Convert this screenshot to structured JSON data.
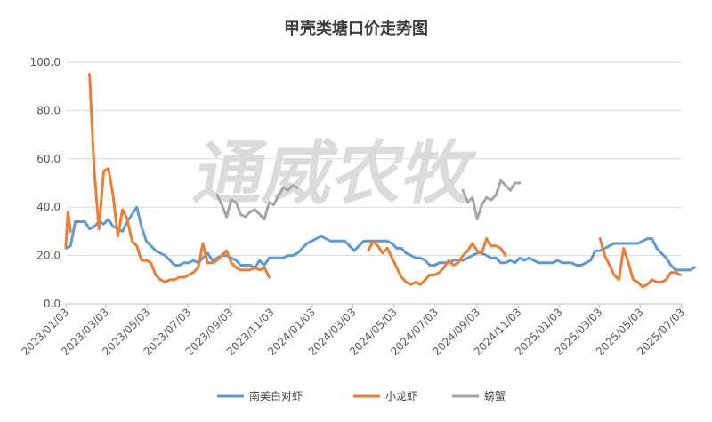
{
  "chart_data": {
    "type": "line",
    "title": "甲壳类塘口价走势图",
    "watermark": "通威农牧",
    "xlabel": "",
    "ylabel": "",
    "ylim": [
      0,
      100
    ],
    "yticks": [
      "0.0",
      "20.0",
      "40.0",
      "60.0",
      "80.0",
      "100.0"
    ],
    "xlim": [
      "2023-01-03",
      "2025-07-03"
    ],
    "xticks": [
      "2023/01/03",
      "2023/03/03",
      "2023/05/03",
      "2023/07/03",
      "2023/09/03",
      "2023/11/03",
      "2024/01/03",
      "2024/03/03",
      "2024/05/03",
      "2024/07/03",
      "2024/09/03",
      "2024/11/03",
      "2025/01/03",
      "2025/03/03",
      "2025/05/03",
      "2025/07/03"
    ],
    "grid": "horizontal",
    "legend": "bottom",
    "series": [
      {
        "name": "南美白对虾",
        "color": "#5b9bd5",
        "points": [
          [
            "2023-01-03",
            23
          ],
          [
            "2023-01-10",
            24
          ],
          [
            "2023-01-17",
            34
          ],
          [
            "2023-01-24",
            34
          ],
          [
            "2023-01-31",
            34
          ],
          [
            "2023-02-07",
            31
          ],
          [
            "2023-02-14",
            32
          ],
          [
            "2023-02-21",
            34
          ],
          [
            "2023-02-28",
            33
          ],
          [
            "2023-03-07",
            35
          ],
          [
            "2023-03-14",
            32
          ],
          [
            "2023-03-21",
            31
          ],
          [
            "2023-03-28",
            30
          ],
          [
            "2023-04-04",
            34
          ],
          [
            "2023-04-11",
            37
          ],
          [
            "2023-04-18",
            40
          ],
          [
            "2023-04-25",
            32
          ],
          [
            "2023-05-02",
            26
          ],
          [
            "2023-05-09",
            24
          ],
          [
            "2023-05-16",
            22
          ],
          [
            "2023-05-23",
            21
          ],
          [
            "2023-05-30",
            20
          ],
          [
            "2023-06-06",
            18
          ],
          [
            "2023-06-13",
            16
          ],
          [
            "2023-06-20",
            16
          ],
          [
            "2023-06-27",
            17
          ],
          [
            "2023-07-04",
            17
          ],
          [
            "2023-07-11",
            18
          ],
          [
            "2023-07-18",
            17
          ],
          [
            "2023-07-25",
            19
          ],
          [
            "2023-08-01",
            21
          ],
          [
            "2023-08-08",
            18
          ],
          [
            "2023-08-15",
            19
          ],
          [
            "2023-08-22",
            20
          ],
          [
            "2023-08-29",
            20
          ],
          [
            "2023-09-05",
            19
          ],
          [
            "2023-09-12",
            18
          ],
          [
            "2023-09-19",
            16
          ],
          [
            "2023-09-26",
            16
          ],
          [
            "2023-10-03",
            16
          ],
          [
            "2023-10-10",
            15
          ],
          [
            "2023-10-17",
            18
          ],
          [
            "2023-10-24",
            16
          ],
          [
            "2023-10-31",
            19
          ],
          [
            "2023-11-07",
            19
          ],
          [
            "2023-11-14",
            19
          ],
          [
            "2023-11-21",
            19
          ],
          [
            "2023-11-28",
            20
          ],
          [
            "2023-12-05",
            20
          ],
          [
            "2023-12-12",
            21
          ],
          [
            "2023-12-19",
            23
          ],
          [
            "2023-12-26",
            25
          ],
          [
            "2024-01-02",
            26
          ],
          [
            "2024-01-09",
            27
          ],
          [
            "2024-01-16",
            28
          ],
          [
            "2024-01-23",
            27
          ],
          [
            "2024-01-30",
            26
          ],
          [
            "2024-02-06",
            26
          ],
          [
            "2024-02-13",
            26
          ],
          [
            "2024-02-20",
            26
          ],
          [
            "2024-02-27",
            24
          ],
          [
            "2024-03-05",
            22
          ],
          [
            "2024-03-12",
            24
          ],
          [
            "2024-03-19",
            26
          ],
          [
            "2024-03-26",
            26
          ],
          [
            "2024-04-02",
            26
          ],
          [
            "2024-04-09",
            26
          ],
          [
            "2024-04-16",
            26
          ],
          [
            "2024-04-23",
            26
          ],
          [
            "2024-04-30",
            25
          ],
          [
            "2024-05-07",
            23
          ],
          [
            "2024-05-14",
            23
          ],
          [
            "2024-05-21",
            21
          ],
          [
            "2024-05-28",
            20
          ],
          [
            "2024-06-04",
            19
          ],
          [
            "2024-06-11",
            19
          ],
          [
            "2024-06-18",
            18
          ],
          [
            "2024-06-25",
            16
          ],
          [
            "2024-07-02",
            16
          ],
          [
            "2024-07-09",
            17
          ],
          [
            "2024-07-16",
            17
          ],
          [
            "2024-07-23",
            17
          ],
          [
            "2024-07-30",
            18
          ],
          [
            "2024-08-06",
            18
          ],
          [
            "2024-08-13",
            18
          ],
          [
            "2024-08-20",
            19
          ],
          [
            "2024-08-27",
            20
          ],
          [
            "2024-09-03",
            21
          ],
          [
            "2024-09-10",
            21
          ],
          [
            "2024-09-17",
            20
          ],
          [
            "2024-09-24",
            19
          ],
          [
            "2024-10-01",
            19
          ],
          [
            "2024-10-08",
            17
          ],
          [
            "2024-10-15",
            17
          ],
          [
            "2024-10-22",
            18
          ],
          [
            "2024-10-29",
            17
          ],
          [
            "2024-11-05",
            19
          ],
          [
            "2024-11-12",
            18
          ],
          [
            "2024-11-19",
            19
          ],
          [
            "2024-11-26",
            18
          ],
          [
            "2024-12-03",
            17
          ],
          [
            "2024-12-10",
            17
          ],
          [
            "2024-12-17",
            17
          ],
          [
            "2024-12-24",
            17
          ],
          [
            "2024-12-31",
            18
          ],
          [
            "2025-01-07",
            17
          ],
          [
            "2025-01-14",
            17
          ],
          [
            "2025-01-21",
            17
          ],
          [
            "2025-01-28",
            16
          ],
          [
            "2025-02-04",
            16
          ],
          [
            "2025-02-11",
            17
          ],
          [
            "2025-02-18",
            18
          ],
          [
            "2025-02-25",
            22
          ],
          [
            "2025-03-04",
            22
          ],
          [
            "2025-03-11",
            23
          ],
          [
            "2025-03-18",
            24
          ],
          [
            "2025-03-25",
            25
          ],
          [
            "2025-04-01",
            25
          ],
          [
            "2025-04-08",
            25
          ],
          [
            "2025-04-15",
            25
          ],
          [
            "2025-04-22",
            25
          ],
          [
            "2025-04-29",
            25
          ],
          [
            "2025-05-06",
            26
          ],
          [
            "2025-05-13",
            27
          ],
          [
            "2025-05-20",
            27
          ],
          [
            "2025-05-27",
            23
          ],
          [
            "2025-06-03",
            21
          ],
          [
            "2025-06-10",
            19
          ],
          [
            "2025-06-17",
            16
          ],
          [
            "2025-06-24",
            14
          ],
          [
            "2025-07-01",
            14
          ],
          [
            "2025-07-08",
            14
          ],
          [
            "2025-07-15",
            14
          ],
          [
            "2025-07-22",
            15
          ]
        ]
      },
      {
        "name": "小龙虾",
        "color": "#ed7d31",
        "segments": [
          [
            [
              "2023-01-03",
              24
            ],
            [
              "2023-01-06",
              38
            ],
            [
              "2023-01-10",
              30
            ]
          ],
          [
            [
              "2023-02-07",
              95
            ],
            [
              "2023-02-14",
              55
            ],
            [
              "2023-02-21",
              31
            ],
            [
              "2023-02-28",
              55
            ],
            [
              "2023-03-07",
              56
            ],
            [
              "2023-03-14",
              45
            ],
            [
              "2023-03-21",
              28
            ],
            [
              "2023-03-28",
              39
            ],
            [
              "2023-04-04",
              35
            ],
            [
              "2023-04-11",
              26
            ],
            [
              "2023-04-18",
              24
            ],
            [
              "2023-04-25",
              18
            ],
            [
              "2023-05-02",
              18
            ],
            [
              "2023-05-09",
              17
            ],
            [
              "2023-05-16",
              12
            ],
            [
              "2023-05-23",
              10
            ],
            [
              "2023-05-30",
              9
            ],
            [
              "2023-06-06",
              10
            ],
            [
              "2023-06-13",
              10
            ],
            [
              "2023-06-20",
              11
            ],
            [
              "2023-06-27",
              11
            ],
            [
              "2023-07-04",
              12
            ],
            [
              "2023-07-11",
              13
            ],
            [
              "2023-07-18",
              15
            ],
            [
              "2023-07-25",
              25
            ],
            [
              "2023-08-01",
              17
            ],
            [
              "2023-08-08",
              17
            ],
            [
              "2023-08-15",
              18
            ],
            [
              "2023-08-22",
              20
            ],
            [
              "2023-08-29",
              22
            ],
            [
              "2023-09-05",
              17
            ],
            [
              "2023-09-12",
              15
            ],
            [
              "2023-09-19",
              14
            ],
            [
              "2023-09-26",
              14
            ],
            [
              "2023-10-03",
              14
            ],
            [
              "2023-10-10",
              15
            ],
            [
              "2023-10-17",
              14
            ],
            [
              "2023-10-24",
              15
            ],
            [
              "2023-10-31",
              11
            ]
          ],
          [
            [
              "2024-03-26",
              22
            ],
            [
              "2024-04-02",
              26
            ],
            [
              "2024-04-09",
              24
            ],
            [
              "2024-04-16",
              21
            ],
            [
              "2024-04-23",
              23
            ],
            [
              "2024-04-30",
              19
            ],
            [
              "2024-05-07",
              15
            ],
            [
              "2024-05-14",
              11
            ],
            [
              "2024-05-21",
              9
            ],
            [
              "2024-05-28",
              8
            ],
            [
              "2024-06-04",
              9
            ],
            [
              "2024-06-11",
              8
            ],
            [
              "2024-06-18",
              10
            ],
            [
              "2024-06-25",
              12
            ],
            [
              "2024-07-02",
              12
            ],
            [
              "2024-07-09",
              13
            ],
            [
              "2024-07-16",
              15
            ],
            [
              "2024-07-23",
              18
            ],
            [
              "2024-07-30",
              16
            ],
            [
              "2024-08-06",
              17
            ],
            [
              "2024-08-13",
              20
            ],
            [
              "2024-08-20",
              22
            ],
            [
              "2024-08-27",
              25
            ],
            [
              "2024-09-03",
              22
            ],
            [
              "2024-09-10",
              21
            ],
            [
              "2024-09-17",
              27
            ],
            [
              "2024-09-24",
              24
            ],
            [
              "2024-10-01",
              24
            ],
            [
              "2024-10-08",
              23
            ],
            [
              "2024-10-15",
              20
            ]
          ],
          [
            [
              "2025-03-04",
              27
            ],
            [
              "2025-03-11",
              20
            ],
            [
              "2025-03-18",
              16
            ],
            [
              "2025-03-25",
              12
            ],
            [
              "2025-04-01",
              10
            ],
            [
              "2025-04-08",
              23
            ],
            [
              "2025-04-15",
              17
            ],
            [
              "2025-04-22",
              10
            ],
            [
              "2025-04-29",
              9
            ],
            [
              "2025-05-06",
              7
            ],
            [
              "2025-05-13",
              8
            ],
            [
              "2025-05-20",
              10
            ],
            [
              "2025-05-27",
              9
            ],
            [
              "2025-06-03",
              9
            ],
            [
              "2025-06-10",
              10
            ],
            [
              "2025-06-17",
              13
            ],
            [
              "2025-06-24",
              13
            ],
            [
              "2025-07-01",
              12
            ]
          ]
        ]
      },
      {
        "name": "螃蟹",
        "color": "#a5a5a5",
        "segments": [
          [
            [
              "2023-08-15",
              45
            ],
            [
              "2023-08-22",
              41
            ],
            [
              "2023-08-29",
              36
            ],
            [
              "2023-09-05",
              43
            ],
            [
              "2023-09-12",
              42
            ],
            [
              "2023-09-19",
              37
            ],
            [
              "2023-09-26",
              36
            ],
            [
              "2023-10-03",
              38
            ],
            [
              "2023-10-10",
              39
            ],
            [
              "2023-10-17",
              37
            ],
            [
              "2023-10-24",
              35
            ],
            [
              "2023-10-31",
              42
            ],
            [
              "2023-11-07",
              41
            ],
            [
              "2023-11-14",
              45
            ],
            [
              "2023-11-21",
              48
            ],
            [
              "2023-11-28",
              47
            ],
            [
              "2023-12-05",
              49
            ],
            [
              "2023-12-12",
              48
            ]
          ],
          [
            [
              "2024-08-13",
              47
            ],
            [
              "2024-08-20",
              42
            ],
            [
              "2024-08-27",
              44
            ],
            [
              "2024-09-03",
              35
            ],
            [
              "2024-09-10",
              41
            ],
            [
              "2024-09-17",
              44
            ],
            [
              "2024-09-24",
              43
            ],
            [
              "2024-10-01",
              45
            ],
            [
              "2024-10-08",
              51
            ],
            [
              "2024-10-15",
              49
            ],
            [
              "2024-10-22",
              47
            ],
            [
              "2024-10-29",
              50
            ],
            [
              "2024-11-05",
              50
            ]
          ]
        ]
      }
    ]
  }
}
